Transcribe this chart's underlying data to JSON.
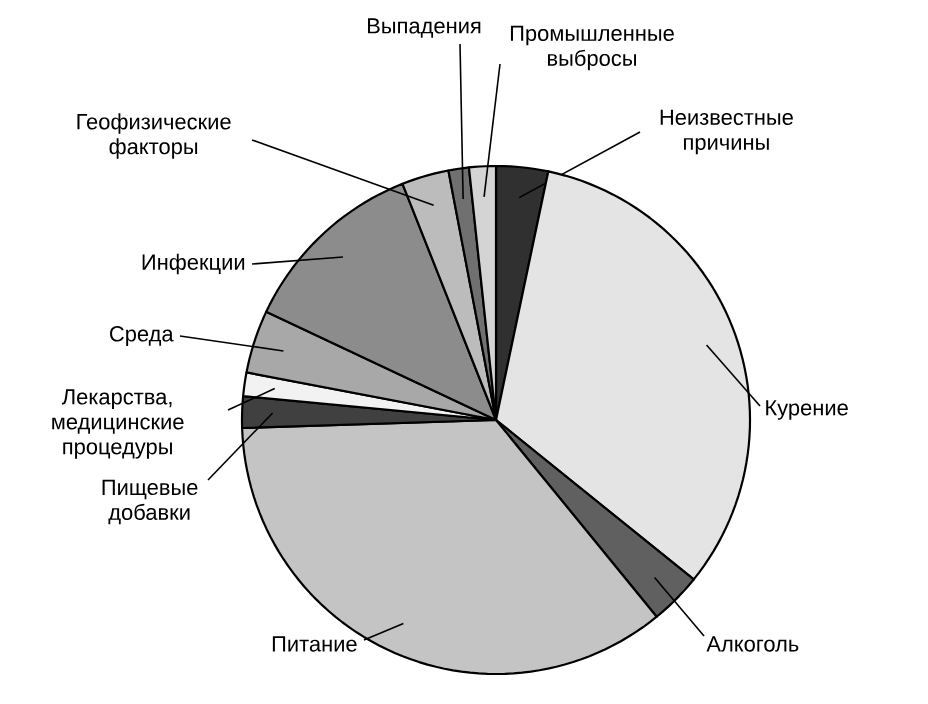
{
  "chart_data": {
    "type": "pie",
    "categories": [
      "Неизвестные причины",
      "Курение",
      "Алкоголь",
      "Питание",
      "Пищевые добавки",
      "Лекарства, медицинские процедуры",
      "Среда",
      "Инфекции",
      "Геофизические факторы",
      "Выпадения",
      "Промышленные выбросы"
    ],
    "values": [
      3.3,
      32.5,
      3.3,
      35.4,
      2,
      1.5,
      4,
      12,
      3,
      1.3,
      1.7
    ],
    "colors": [
      "#303030",
      "#e4e4e4",
      "#606060",
      "#c4c4c4",
      "#404040",
      "#f2f2f2",
      "#a8a8a8",
      "#8c8c8c",
      "#bcbcbc",
      "#707070",
      "#d4d4d4"
    ]
  }
}
